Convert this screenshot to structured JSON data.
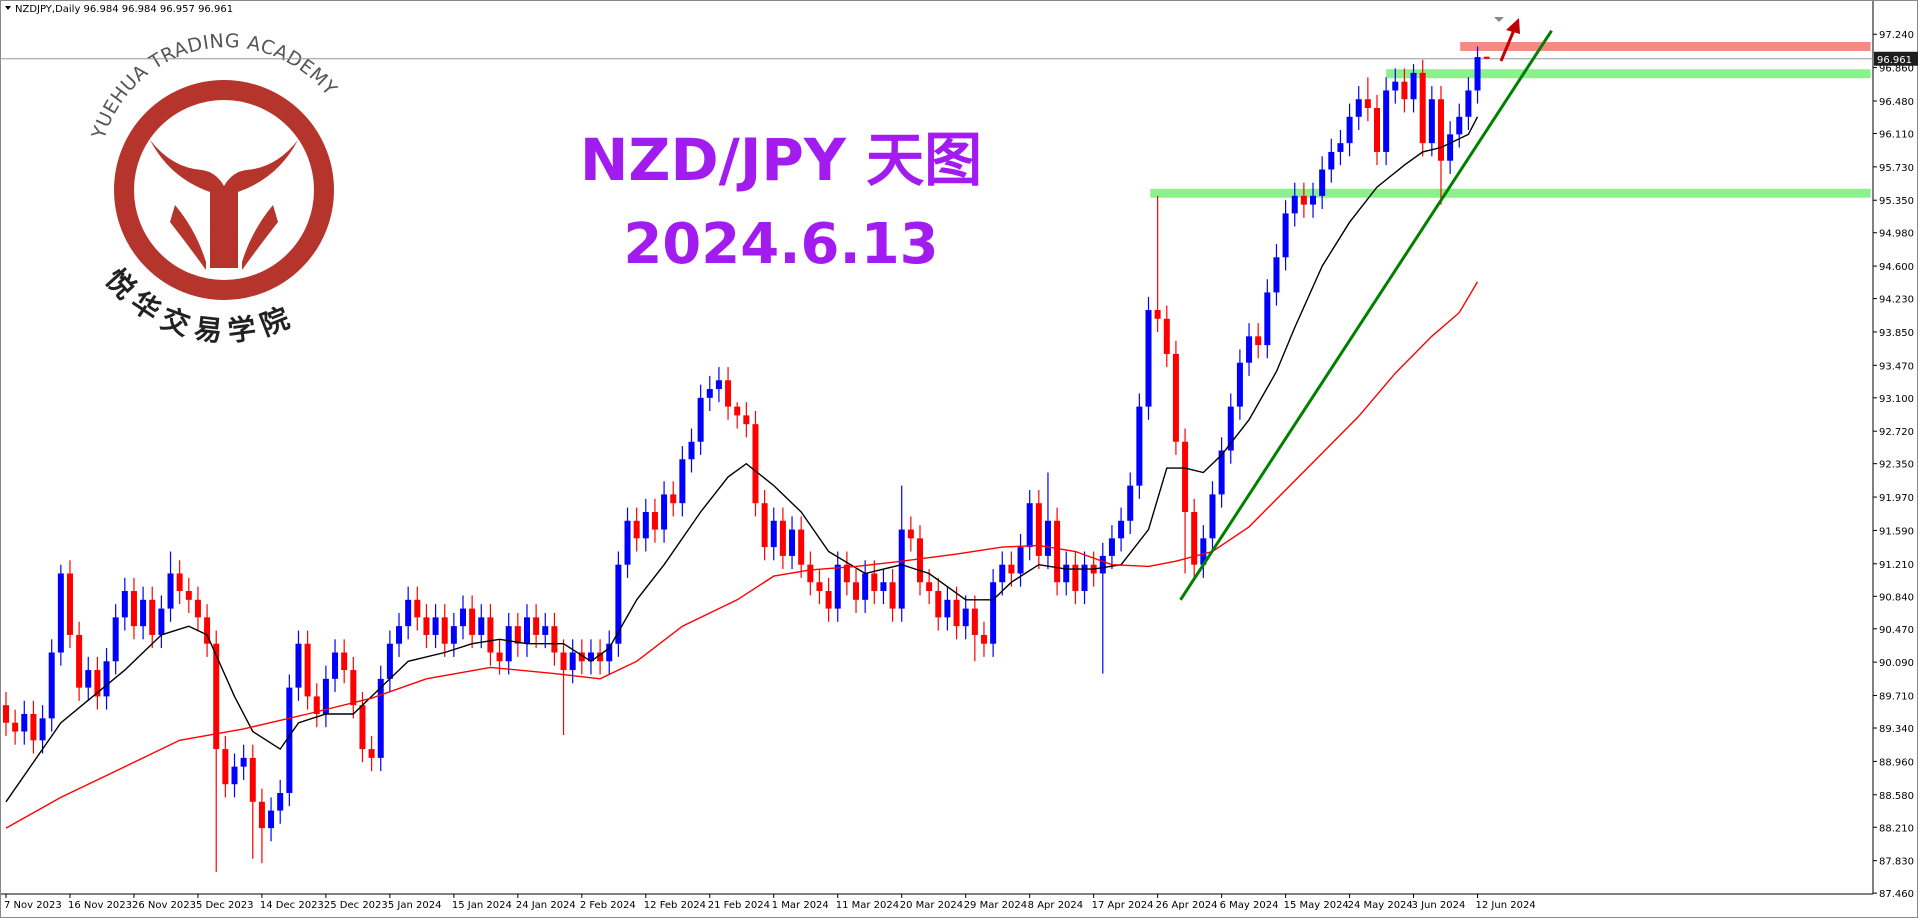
{
  "chart_data": {
    "type": "candlestick",
    "header": "NZDJPY,Daily  96.984 96.984 96.957 96.961",
    "title": "NZD/JPY 天图",
    "subtitle": "2024.6.13",
    "watermark": [
      "YUEHUA TRADING ACADEMY",
      "悦华交易学院"
    ],
    "up_color": "#0000ff",
    "down_color": "#ff0000",
    "categories": [
      "7 Nov 2023",
      null,
      null,
      null,
      null,
      null,
      null,
      "16 Nov 2023",
      null,
      null,
      null,
      null,
      null,
      null,
      "26 Nov 2023",
      null,
      null,
      null,
      null,
      null,
      null,
      "5 Dec 2023",
      null,
      null,
      null,
      null,
      null,
      null,
      "14 Dec 2023",
      null,
      null,
      null,
      null,
      null,
      null,
      "25 Dec 2023",
      null,
      null,
      null,
      null,
      null,
      null,
      "5 Jan 2024",
      null,
      null,
      null,
      null,
      null,
      null,
      "15 Jan 2024",
      null,
      null,
      null,
      null,
      null,
      null,
      "24 Jan 2024",
      null,
      null,
      null,
      null,
      null,
      null,
      "2 Feb 2024",
      null,
      null,
      null,
      null,
      null,
      null,
      "12 Feb 2024",
      null,
      null,
      null,
      null,
      null,
      null,
      "21 Feb 2024",
      null,
      null,
      null,
      null,
      null,
      null,
      "1 Mar 2024",
      null,
      null,
      null,
      null,
      null,
      null,
      "11 Mar 2024",
      null,
      null,
      null,
      null,
      null,
      null,
      "20 Mar 2024",
      null,
      null,
      null,
      null,
      null,
      null,
      "29 Mar 2024",
      null,
      null,
      null,
      null,
      null,
      null,
      "8 Apr 2024",
      null,
      null,
      null,
      null,
      null,
      null,
      "17 Apr 2024",
      null,
      null,
      null,
      null,
      null,
      null,
      "26 Apr 2024",
      null,
      null,
      null,
      null,
      null,
      null,
      "6 May 2024",
      null,
      null,
      null,
      null,
      null,
      null,
      "15 May 2024",
      null,
      null,
      null,
      null,
      null,
      null,
      "24 May 2024",
      null,
      null,
      null,
      null,
      null,
      null,
      "3 Jun 2024",
      null,
      null,
      null,
      null,
      null,
      null,
      "12 Jun 2024",
      null
    ],
    "open": [
      89.6,
      89.4,
      89.3,
      89.5,
      89.2,
      89.45,
      90.2,
      91.1,
      90.4,
      89.8,
      90.0,
      89.7,
      90.1,
      90.6,
      90.9,
      90.5,
      90.8,
      90.4,
      90.7,
      91.1,
      90.9,
      90.8,
      90.6,
      90.3,
      89.1,
      88.7,
      88.9,
      89.0,
      88.5,
      88.2,
      88.4,
      88.6,
      89.8,
      90.3,
      89.7,
      89.5,
      89.9,
      90.2,
      90.0,
      89.6,
      89.1,
      89.0,
      89.9,
      90.3,
      90.5,
      90.8,
      90.6,
      90.4,
      90.6,
      90.3,
      90.5,
      90.7,
      90.4,
      90.6,
      90.2,
      90.1,
      90.5,
      90.3,
      90.6,
      90.4,
      90.5,
      90.2,
      90.0,
      90.2,
      90.1,
      90.2,
      90.1,
      90.3,
      91.2,
      91.7,
      91.5,
      91.8,
      91.6,
      92.0,
      91.9,
      92.4,
      92.6,
      93.1,
      93.2,
      93.3,
      93.0,
      92.9,
      92.8,
      91.9,
      91.4,
      91.7,
      91.3,
      91.6,
      91.2,
      91.0,
      90.9,
      90.7,
      91.2,
      91.0,
      90.8,
      91.1,
      90.9,
      91.0,
      90.7,
      91.6,
      91.5,
      91.0,
      90.9,
      90.6,
      90.8,
      90.5,
      90.7,
      90.4,
      90.3,
      91.0,
      91.2,
      91.1,
      91.4,
      91.9,
      91.3,
      91.7,
      91.0,
      91.2,
      90.9,
      91.2,
      91.1,
      91.3,
      91.5,
      91.7,
      92.1,
      93.0,
      94.1,
      94.0,
      93.6,
      92.6,
      91.8,
      91.2,
      91.5,
      92.0,
      92.5,
      93.0,
      93.5,
      93.8,
      93.7,
      94.3,
      94.7,
      95.2,
      95.4,
      95.3,
      95.4,
      95.7,
      95.9,
      96.0,
      96.3,
      96.5,
      96.4,
      95.9,
      96.6,
      96.7,
      96.5,
      96.8,
      96.0,
      96.5,
      95.8,
      96.1,
      96.3,
      96.6,
      96.984
    ],
    "high": [
      89.75,
      89.55,
      89.65,
      89.65,
      89.6,
      90.35,
      91.2,
      91.25,
      90.55,
      90.15,
      90.15,
      90.25,
      90.75,
      91.05,
      91.05,
      90.95,
      90.95,
      90.85,
      91.35,
      91.25,
      91.05,
      90.95,
      90.75,
      90.45,
      89.25,
      89.05,
      89.15,
      89.15,
      88.65,
      88.55,
      88.75,
      89.95,
      90.45,
      90.45,
      89.85,
      90.05,
      90.35,
      90.35,
      90.15,
      89.75,
      89.25,
      90.05,
      90.45,
      90.65,
      90.95,
      90.95,
      90.75,
      90.75,
      90.75,
      90.65,
      90.85,
      90.85,
      90.75,
      90.75,
      90.35,
      90.65,
      90.65,
      90.75,
      90.75,
      90.65,
      90.65,
      90.35,
      90.35,
      90.35,
      90.35,
      90.35,
      90.45,
      91.35,
      91.85,
      91.85,
      91.95,
      91.95,
      92.15,
      92.15,
      92.55,
      92.75,
      93.25,
      93.35,
      93.45,
      93.45,
      93.05,
      93.05,
      92.95,
      92.05,
      91.85,
      91.85,
      91.75,
      91.75,
      91.35,
      91.15,
      91.05,
      91.35,
      91.35,
      91.15,
      91.25,
      91.25,
      91.15,
      91.15,
      92.1,
      91.75,
      91.65,
      91.15,
      91.05,
      90.95,
      90.95,
      90.85,
      90.85,
      90.55,
      91.15,
      91.35,
      91.35,
      91.55,
      92.05,
      92.05,
      92.25,
      91.85,
      91.35,
      91.35,
      91.35,
      91.35,
      91.45,
      91.65,
      91.85,
      92.25,
      93.15,
      94.25,
      95.4,
      94.15,
      93.75,
      92.75,
      91.95,
      91.65,
      92.15,
      92.65,
      93.15,
      93.65,
      93.95,
      93.95,
      94.45,
      94.85,
      95.35,
      95.55,
      95.55,
      95.55,
      95.85,
      96.05,
      96.15,
      96.45,
      96.65,
      96.75,
      96.55,
      96.75,
      96.85,
      96.85,
      96.9,
      96.95,
      96.65,
      96.65,
      96.25,
      96.45,
      96.75,
      97.1,
      96.984
    ],
    "low": [
      89.25,
      89.15,
      89.15,
      89.05,
      89.05,
      89.3,
      90.05,
      90.25,
      89.65,
      89.65,
      89.55,
      89.55,
      89.95,
      90.45,
      90.35,
      90.35,
      90.25,
      90.25,
      90.55,
      90.75,
      90.65,
      90.45,
      90.15,
      87.7,
      88.55,
      88.55,
      88.75,
      87.85,
      87.8,
      88.05,
      88.25,
      88.45,
      89.65,
      89.55,
      89.35,
      89.35,
      89.75,
      89.85,
      89.45,
      88.95,
      88.85,
      88.85,
      89.75,
      90.15,
      90.35,
      90.45,
      90.25,
      90.25,
      90.15,
      90.15,
      90.35,
      90.25,
      90.25,
      90.05,
      89.95,
      89.95,
      90.15,
      90.15,
      90.25,
      90.25,
      90.05,
      89.26,
      89.85,
      89.95,
      89.95,
      89.95,
      89.95,
      90.15,
      91.05,
      91.35,
      91.35,
      91.45,
      91.45,
      91.75,
      91.75,
      92.25,
      92.45,
      92.95,
      93.05,
      92.85,
      92.75,
      92.65,
      91.75,
      91.25,
      91.25,
      91.15,
      91.15,
      91.05,
      90.85,
      90.75,
      90.55,
      90.55,
      90.85,
      90.65,
      90.65,
      90.75,
      90.75,
      90.55,
      90.55,
      91.35,
      90.85,
      90.75,
      90.45,
      90.45,
      90.35,
      90.35,
      90.1,
      90.15,
      90.15,
      90.85,
      90.95,
      90.95,
      91.25,
      91.15,
      91.15,
      90.85,
      90.85,
      90.75,
      90.75,
      90.95,
      89.96,
      91.15,
      91.35,
      91.55,
      91.95,
      92.85,
      93.85,
      93.45,
      92.45,
      91.1,
      91.05,
      91.05,
      91.35,
      91.85,
      92.35,
      92.85,
      93.35,
      93.55,
      93.55,
      94.15,
      94.55,
      95.05,
      95.15,
      95.15,
      95.25,
      95.55,
      95.75,
      95.85,
      96.15,
      96.25,
      95.75,
      95.75,
      96.45,
      96.35,
      96.35,
      95.85,
      95.85,
      95.3,
      95.65,
      95.95,
      96.15,
      96.45,
      96.957
    ],
    "close": [
      89.4,
      89.3,
      89.5,
      89.2,
      89.45,
      90.2,
      91.1,
      90.4,
      89.8,
      90.0,
      89.7,
      90.1,
      90.6,
      90.9,
      90.5,
      90.8,
      90.4,
      90.7,
      91.1,
      90.9,
      90.8,
      90.6,
      90.3,
      89.1,
      88.7,
      88.9,
      89.0,
      88.5,
      88.2,
      88.4,
      88.6,
      89.8,
      90.3,
      89.7,
      89.5,
      89.9,
      90.2,
      90.0,
      89.6,
      89.1,
      89.0,
      89.9,
      90.3,
      90.5,
      90.8,
      90.6,
      90.4,
      90.6,
      90.3,
      90.5,
      90.7,
      90.4,
      90.6,
      90.2,
      90.1,
      90.5,
      90.3,
      90.6,
      90.4,
      90.5,
      90.2,
      90.0,
      90.2,
      90.1,
      90.2,
      90.1,
      90.3,
      91.2,
      91.7,
      91.5,
      91.8,
      91.6,
      92.0,
      91.9,
      92.4,
      92.6,
      93.1,
      93.2,
      93.3,
      93.0,
      92.9,
      92.8,
      91.9,
      91.4,
      91.7,
      91.3,
      91.6,
      91.2,
      91.0,
      90.9,
      90.7,
      91.2,
      91.0,
      90.8,
      91.1,
      90.9,
      91.0,
      90.7,
      91.6,
      91.5,
      91.0,
      90.9,
      90.6,
      90.8,
      90.5,
      90.7,
      90.4,
      90.3,
      91.0,
      91.2,
      91.1,
      91.4,
      91.9,
      91.3,
      91.7,
      91.0,
      91.2,
      90.9,
      91.2,
      91.1,
      91.3,
      91.5,
      91.7,
      92.1,
      93.0,
      94.1,
      94.0,
      93.6,
      92.6,
      91.8,
      91.2,
      91.5,
      92.0,
      92.5,
      93.0,
      93.5,
      93.8,
      93.7,
      94.3,
      94.7,
      95.2,
      95.4,
      95.3,
      95.4,
      95.7,
      95.9,
      96.0,
      96.3,
      96.5,
      96.4,
      95.9,
      96.6,
      96.7,
      96.5,
      96.8,
      96.0,
      96.5,
      95.8,
      96.1,
      96.3,
      96.6,
      96.98,
      96.961
    ],
    "lines": [
      {
        "color": "#000000",
        "x": [
          0,
          6,
          13,
          17,
          20,
          22,
          25,
          27,
          30,
          32,
          35,
          38,
          41,
          44,
          48,
          51,
          54,
          57,
          61,
          64,
          66,
          69,
          72,
          76,
          79,
          81,
          84,
          87,
          90,
          94,
          98,
          101,
          105,
          108,
          110,
          113,
          116,
          119,
          122,
          125,
          127,
          129,
          131,
          133,
          136,
          139,
          141,
          144,
          147,
          150,
          153,
          155,
          157,
          160,
          161
        ],
        "values": [
          88.5,
          89.4,
          90.0,
          90.4,
          90.5,
          90.4,
          89.7,
          89.3,
          89.1,
          89.4,
          89.5,
          89.5,
          89.8,
          90.1,
          90.2,
          90.3,
          90.35,
          90.3,
          90.3,
          90.1,
          90.25,
          90.8,
          91.2,
          91.8,
          92.2,
          92.35,
          92.1,
          91.8,
          91.35,
          91.1,
          91.2,
          91.1,
          90.8,
          90.8,
          91.0,
          91.2,
          91.15,
          91.15,
          91.2,
          91.6,
          92.3,
          92.3,
          92.25,
          92.45,
          92.85,
          93.4,
          93.9,
          94.6,
          95.1,
          95.5,
          95.75,
          95.9,
          95.95,
          96.1,
          96.3
        ]
      },
      {
        "color": "#ff0000",
        "x": [
          0,
          6,
          13,
          19,
          26,
          33,
          40,
          46,
          53,
          60,
          65,
          69,
          74,
          80,
          84,
          88,
          93,
          98,
          104,
          109,
          113,
          117,
          121,
          125,
          128,
          132,
          136,
          140,
          144,
          148,
          152,
          156,
          159,
          161
        ],
        "values": [
          88.2,
          88.55,
          88.9,
          89.2,
          89.33,
          89.5,
          89.68,
          89.9,
          90.03,
          89.96,
          89.9,
          90.1,
          90.5,
          90.8,
          91.07,
          91.14,
          91.18,
          91.24,
          91.32,
          91.4,
          91.42,
          91.35,
          91.2,
          91.18,
          91.24,
          91.35,
          91.63,
          92.05,
          92.47,
          92.89,
          93.38,
          93.8,
          94.07,
          94.42
        ]
      }
    ],
    "trendline": {
      "color": "#008000",
      "x": [
        128.5,
        169.1
      ],
      "values": [
        90.8,
        97.28
      ]
    },
    "hlines": [
      {
        "value": 97.1,
        "x": [
          159.1,
          204
        ],
        "color": "#f28b82"
      },
      {
        "value": 96.79,
        "x": [
          151,
          204
        ],
        "color": "#8cf08c"
      },
      {
        "value": 95.43,
        "x": [
          125.2,
          204
        ],
        "color": "#8cf08c"
      }
    ],
    "last_price": 96.961,
    "ylim": [
      87.45,
      97.63
    ],
    "yticks": [
      {
        "value": 97.24,
        "label": "97.240"
      },
      {
        "value": 96.86,
        "label": "96.860"
      },
      {
        "value": 96.48,
        "label": "96.480"
      },
      {
        "value": 96.11,
        "label": "96.110"
      },
      {
        "value": 95.73,
        "label": "95.730"
      },
      {
        "value": 95.35,
        "label": "95.350"
      },
      {
        "value": 94.98,
        "label": "94.980"
      },
      {
        "value": 94.6,
        "label": "94.600"
      },
      {
        "value": 94.23,
        "label": "94.230"
      },
      {
        "value": 93.85,
        "label": "93.850"
      },
      {
        "value": 93.47,
        "label": "93.470"
      },
      {
        "value": 93.1,
        "label": "93.100"
      },
      {
        "value": 92.72,
        "label": "92.720"
      },
      {
        "value": 92.35,
        "label": "92.350"
      },
      {
        "value": 91.97,
        "label": "91.970"
      },
      {
        "value": 91.59,
        "label": "91.590"
      },
      {
        "value": 91.21,
        "label": "91.210"
      },
      {
        "value": 90.84,
        "label": "90.840"
      },
      {
        "value": 90.47,
        "label": "90.470"
      },
      {
        "value": 90.09,
        "label": "90.090"
      },
      {
        "value": 89.71,
        "label": "89.710"
      },
      {
        "value": 89.34,
        "label": "89.340"
      },
      {
        "value": 88.96,
        "label": "88.960"
      },
      {
        "value": 88.58,
        "label": "88.580"
      },
      {
        "value": 88.21,
        "label": "88.210"
      },
      {
        "value": 87.83,
        "label": "87.830"
      },
      {
        "value": 87.46,
        "label": "87.460"
      }
    ]
  }
}
